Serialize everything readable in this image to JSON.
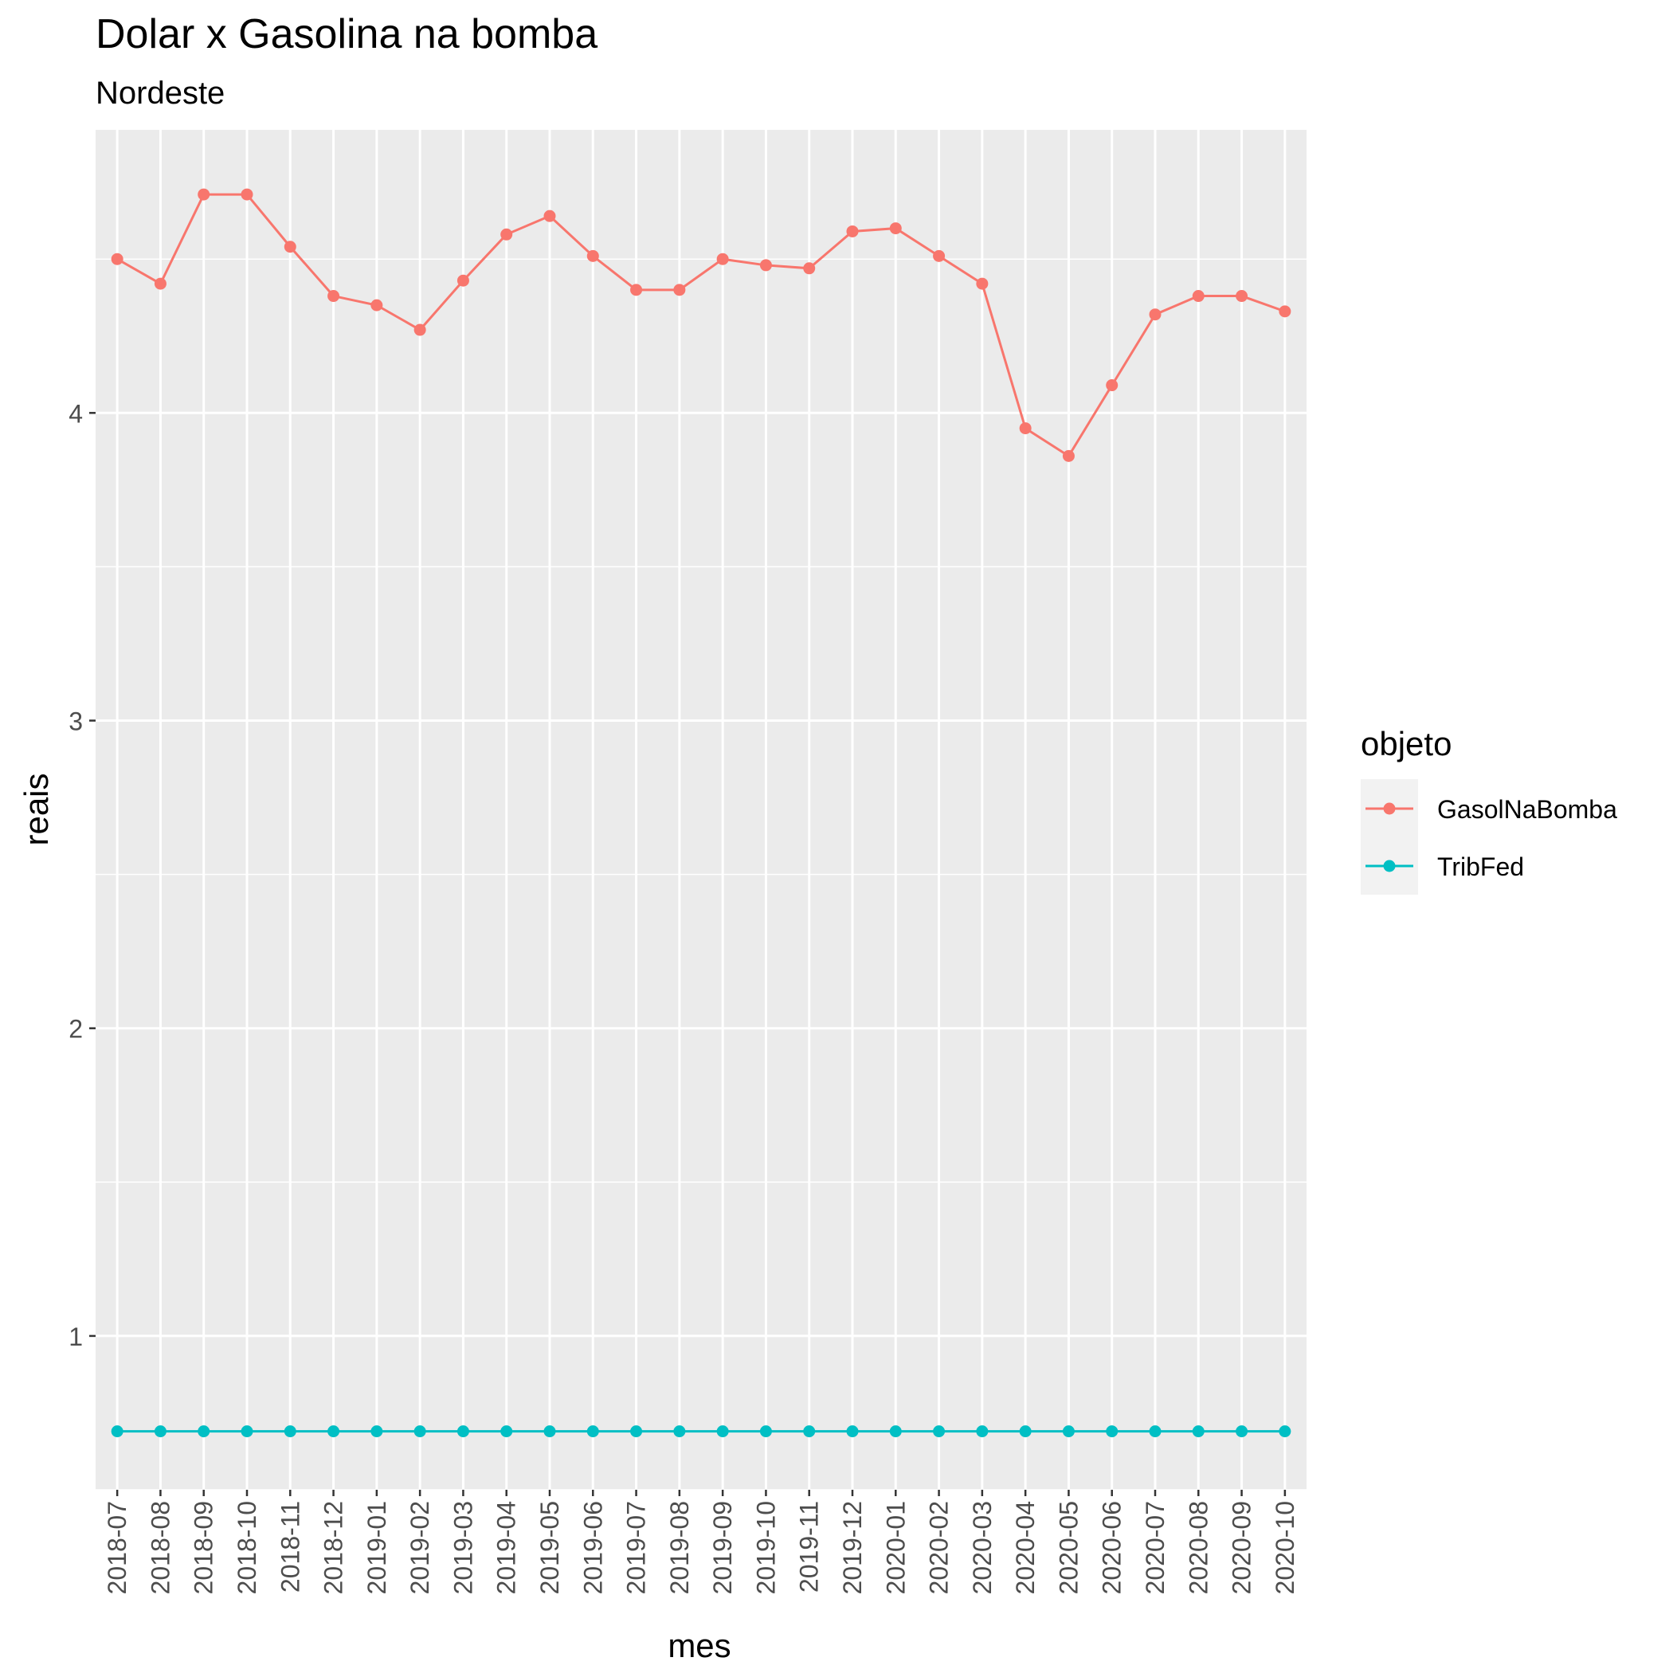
{
  "chart_data": {
    "type": "line",
    "title": "Dolar x Gasolina na bomba",
    "subtitle": "Nordeste",
    "xlabel": "mes",
    "ylabel": "reais",
    "ylim": [
      0.5,
      4.92
    ],
    "y_ticks": [
      1,
      2,
      3,
      4
    ],
    "y_tick_labels": [
      "1",
      "2",
      "3",
      "4"
    ],
    "grid": true,
    "legend": {
      "title": "objeto",
      "position": "right"
    },
    "categories": [
      "2018-07",
      "2018-08",
      "2018-09",
      "2018-10",
      "2018-11",
      "2018-12",
      "2019-01",
      "2019-02",
      "2019-03",
      "2019-04",
      "2019-05",
      "2019-06",
      "2019-07",
      "2019-08",
      "2019-09",
      "2019-10",
      "2019-11",
      "2019-12",
      "2020-01",
      "2020-02",
      "2020-03",
      "2020-04",
      "2020-05",
      "2020-06",
      "2020-07",
      "2020-08",
      "2020-09",
      "2020-10"
    ],
    "series": [
      {
        "name": "GasolNaBomba",
        "color": "#F8766D",
        "values": [
          4.5,
          4.42,
          4.71,
          4.71,
          4.54,
          4.38,
          4.35,
          4.27,
          4.43,
          4.58,
          4.64,
          4.51,
          4.4,
          4.4,
          4.5,
          4.48,
          4.47,
          4.59,
          4.6,
          4.51,
          4.42,
          3.95,
          3.86,
          4.09,
          4.32,
          4.38,
          4.38,
          4.33
        ]
      },
      {
        "name": "TribFed",
        "color": "#00BFC4",
        "values": [
          0.69,
          0.69,
          0.69,
          0.69,
          0.69,
          0.69,
          0.69,
          0.69,
          0.69,
          0.69,
          0.69,
          0.69,
          0.69,
          0.69,
          0.69,
          0.69,
          0.69,
          0.69,
          0.69,
          0.69,
          0.69,
          0.69,
          0.69,
          0.69,
          0.69,
          0.69,
          0.69,
          0.69
        ]
      }
    ]
  }
}
